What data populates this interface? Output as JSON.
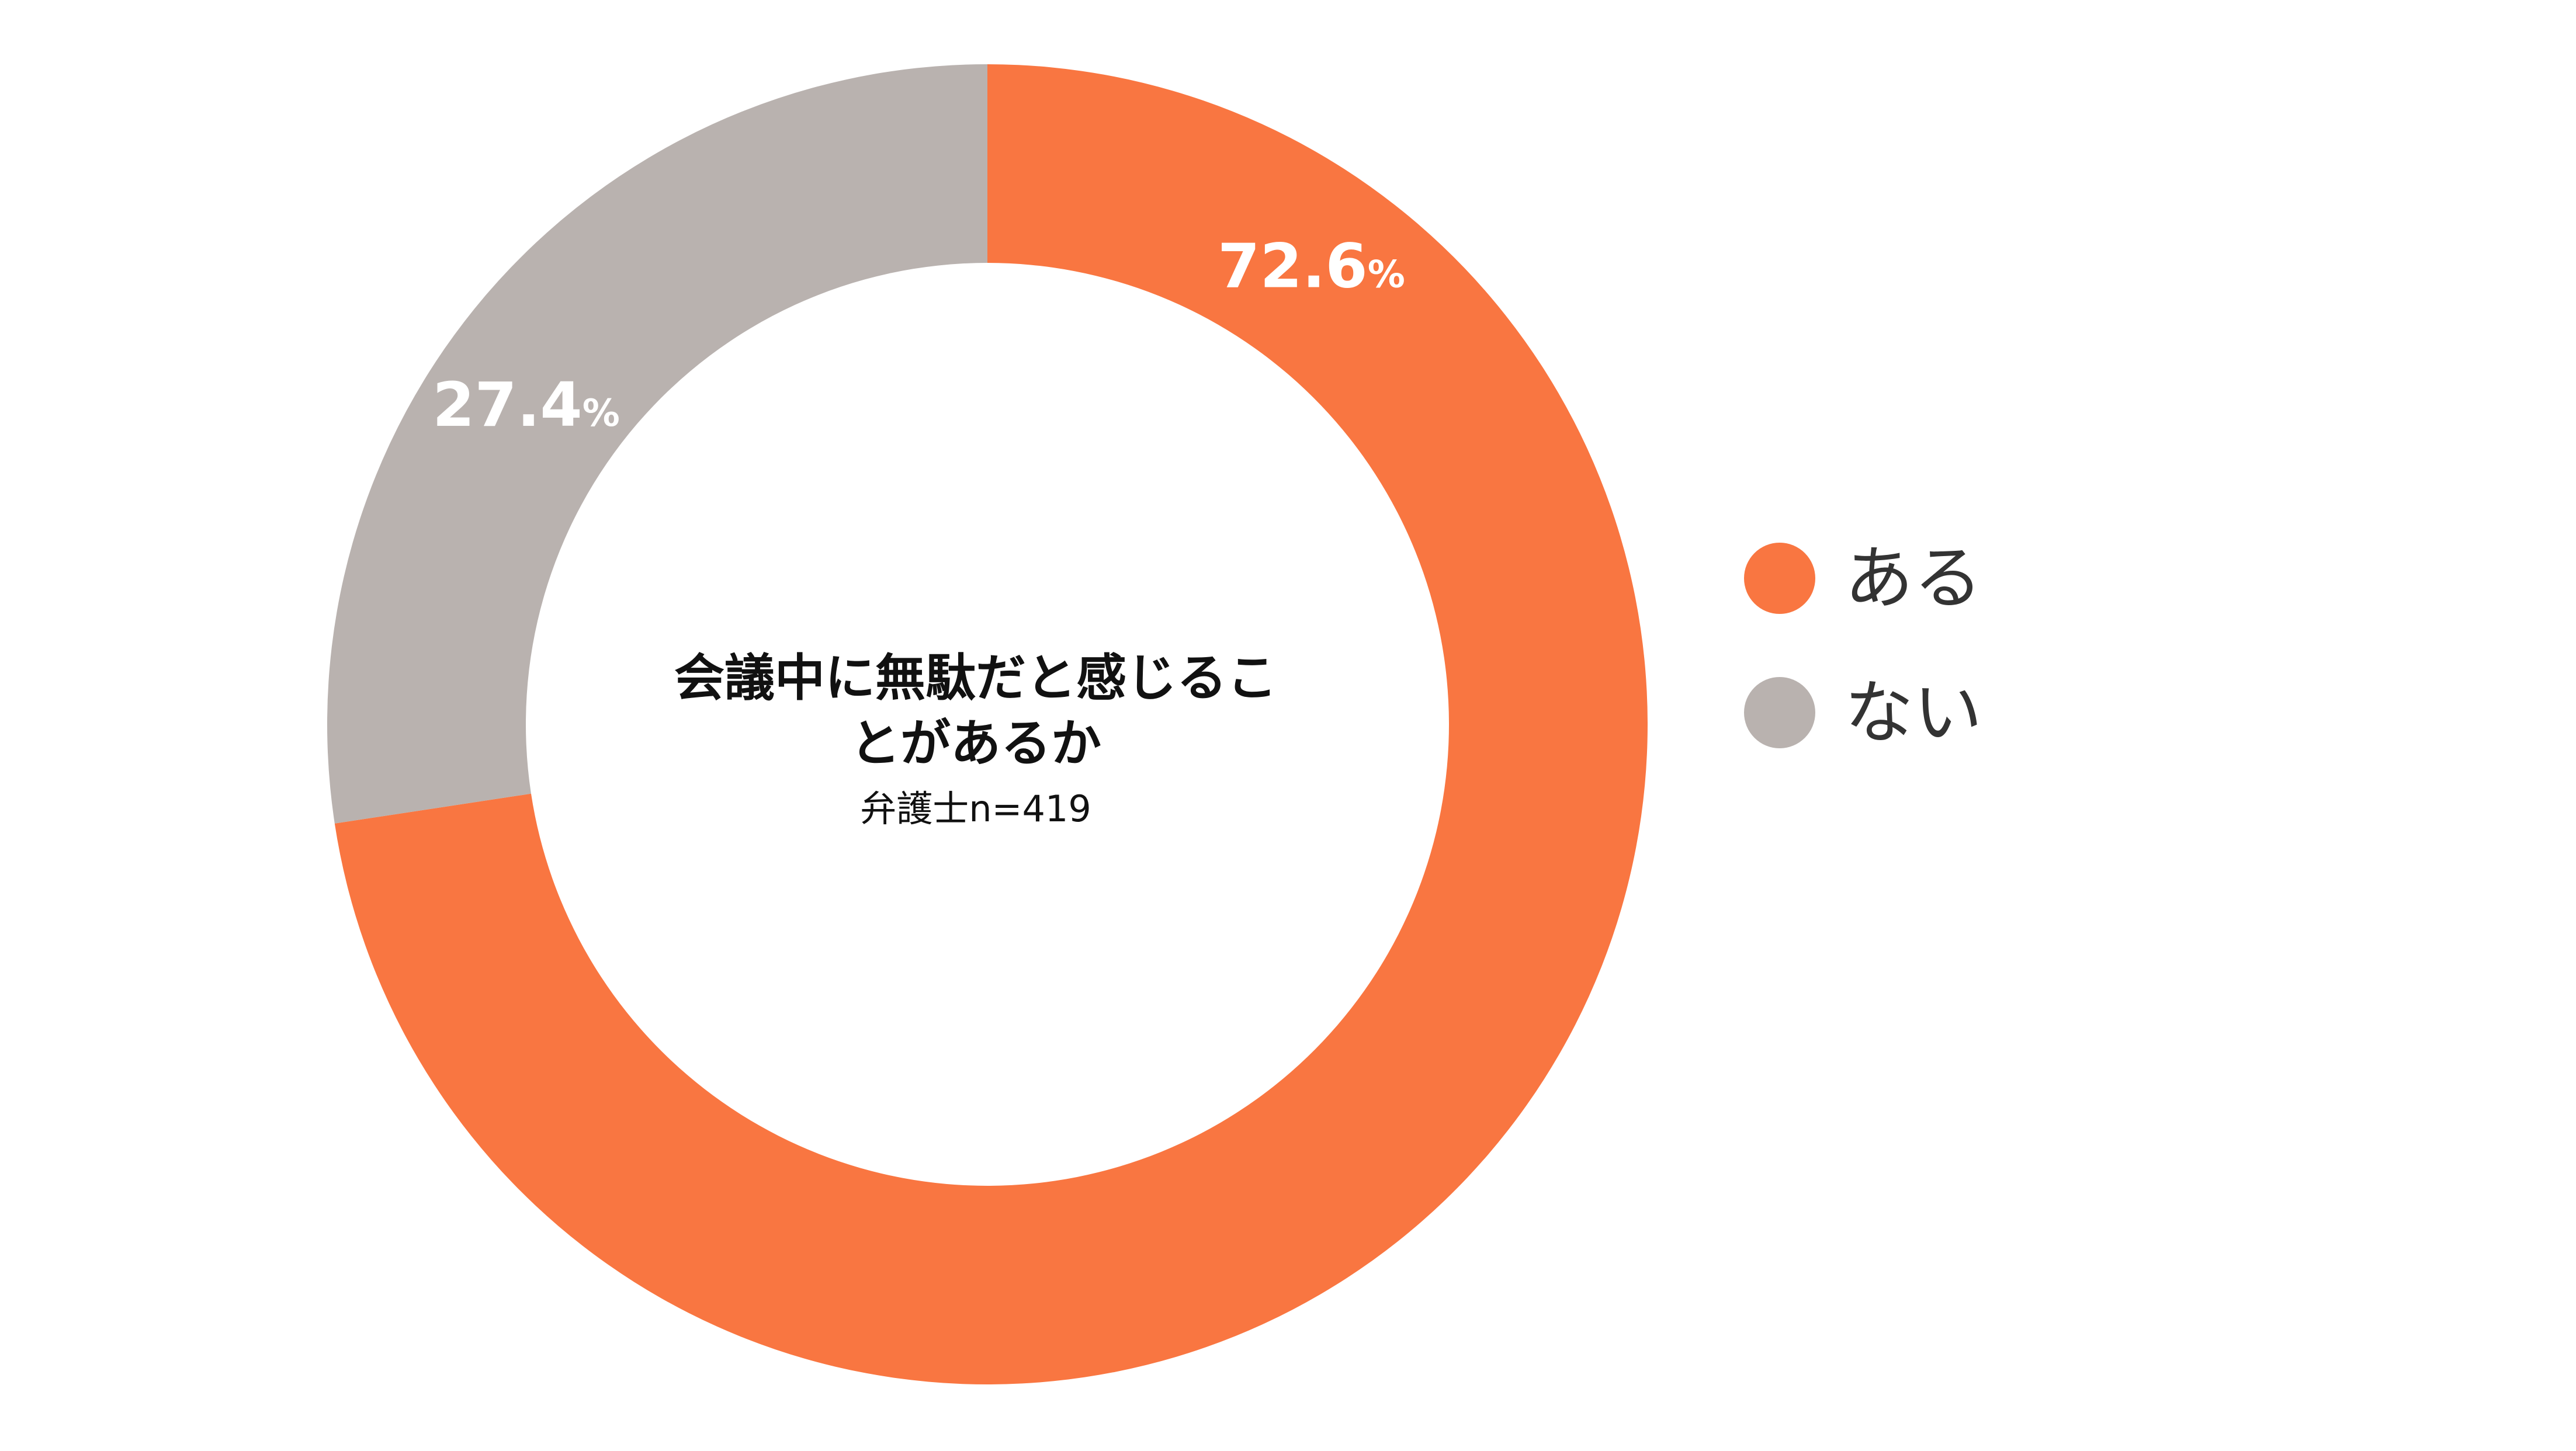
{
  "chart_data": {
    "type": "pie",
    "donut": true,
    "categories": [
      "ある",
      "ない"
    ],
    "values": [
      72.6,
      27.4
    ],
    "value_labels": [
      "72.6",
      "27.4"
    ],
    "unit": "%",
    "colors": [
      "#F97641",
      "#B9B2AF"
    ],
    "center_title_lines": [
      "会議中に無駄だと感じるこ",
      "とがあるか"
    ],
    "center_subtitle": "弁護士n=419",
    "legend_position": "right"
  }
}
